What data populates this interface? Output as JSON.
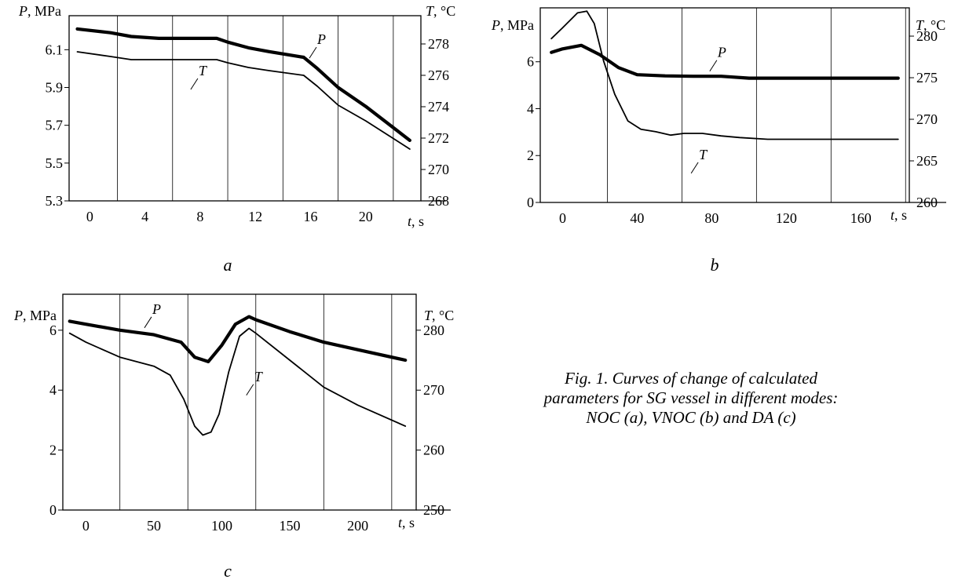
{
  "caption": {
    "line1": "Fig. 1. Curves of change of calculated",
    "line2": "parameters for SG vessel in different modes:",
    "line3": "NOC (a), VNOC (b) and DA (c)"
  },
  "chart_data": [
    {
      "panel": "a",
      "type": "line",
      "xlabel_var": "t",
      "xlabel_unit": ", s",
      "ylabel_left_var": "P",
      "ylabel_left_unit": ", MPa",
      "ylabel_right_var": "T",
      "ylabel_right_unit": ", °C",
      "x_ticks": [
        0,
        4,
        8,
        12,
        16,
        20
      ],
      "xlim": [
        -1.5,
        24
      ],
      "y_left_ticks": [
        5.3,
        5.5,
        5.7,
        5.9,
        6.1
      ],
      "y_left_tick_labels": [
        "5.3",
        "5.5",
        "5.7",
        "5.9",
        "6.1"
      ],
      "ylim_left": [
        5.3,
        6.28
      ],
      "y_right_ticks": [
        268,
        270,
        272,
        274,
        276,
        278
      ],
      "ylim_right": [
        268,
        279.8
      ],
      "vgrid": [
        2,
        6,
        10,
        14,
        18,
        22
      ],
      "series": [
        {
          "name": "P",
          "axis": "left",
          "bold": true,
          "x": [
            -0.9,
            1.5,
            3.0,
            5.0,
            9.2,
            10.0,
            11.5,
            13.0,
            15.5,
            16.5,
            18.0,
            20.0,
            23.2
          ],
          "y": [
            6.21,
            6.19,
            6.17,
            6.16,
            6.16,
            6.14,
            6.11,
            6.09,
            6.06,
            6.0,
            5.9,
            5.8,
            5.62
          ]
        },
        {
          "name": "T",
          "axis": "right",
          "bold": false,
          "x": [
            -0.9,
            1.5,
            3.0,
            5.0,
            9.2,
            10.0,
            11.5,
            13.0,
            15.5,
            16.5,
            18.0,
            20.0,
            23.2
          ],
          "y": [
            277.5,
            277.2,
            277.0,
            277.0,
            277.0,
            276.8,
            276.5,
            276.3,
            276.0,
            275.3,
            274.1,
            273.1,
            271.3
          ]
        }
      ],
      "labels": [
        {
          "text": "P",
          "x": 16.6,
          "y": 6.13,
          "axis": "left"
        },
        {
          "text": "T",
          "x": 8.0,
          "y": 276.0,
          "axis": "right"
        }
      ]
    },
    {
      "panel": "b",
      "type": "line",
      "xlabel_var": "t",
      "xlabel_unit": ", s",
      "ylabel_left_var": "P",
      "ylabel_left_unit": ", MPa",
      "ylabel_right_var": "T",
      "ylabel_right_unit": ", °C",
      "x_ticks": [
        0,
        40,
        80,
        120,
        160
      ],
      "xlim": [
        -12,
        186
      ],
      "y_left_ticks": [
        0,
        2,
        4,
        6
      ],
      "y_left_tick_labels": [
        "0",
        "2",
        "4",
        "6"
      ],
      "ylim_left": [
        0,
        8.3
      ],
      "y_right_ticks": [
        260,
        265,
        270,
        275,
        280
      ],
      "ylim_right": [
        260,
        283.4
      ],
      "vgrid": [
        24,
        64,
        104,
        144,
        184
      ],
      "series": [
        {
          "name": "P",
          "axis": "left",
          "bold": true,
          "x": [
            -6,
            0,
            10,
            20,
            30,
            40,
            55,
            70,
            85,
            100,
            140,
            180
          ],
          "y": [
            6.4,
            6.55,
            6.7,
            6.3,
            5.75,
            5.45,
            5.4,
            5.38,
            5.38,
            5.3,
            5.3,
            5.3
          ]
        },
        {
          "name": "T",
          "axis": "right",
          "bold": false,
          "x": [
            -6,
            0,
            8,
            13,
            17,
            22,
            28,
            35,
            42,
            50,
            58,
            65,
            75,
            85,
            95,
            110,
            140,
            180
          ],
          "y": [
            279.7,
            281.0,
            282.8,
            283.0,
            281.5,
            277.0,
            273.0,
            269.8,
            268.8,
            268.5,
            268.1,
            268.3,
            268.3,
            268.0,
            267.8,
            267.6,
            267.6,
            267.6
          ]
        }
      ],
      "labels": [
        {
          "text": "P",
          "x": 84,
          "y": 6.2,
          "axis": "left"
        },
        {
          "text": "T",
          "x": 74,
          "y": 265.2,
          "axis": "right"
        }
      ]
    },
    {
      "panel": "c",
      "type": "line",
      "xlabel_var": "t",
      "xlabel_unit": ", s",
      "ylabel_left_var": "P",
      "ylabel_left_unit": ", MPa",
      "ylabel_right_var": "T",
      "ylabel_right_unit": ", °C",
      "x_ticks": [
        0,
        50,
        100,
        150,
        200
      ],
      "xlim": [
        -17,
        243
      ],
      "y_left_ticks": [
        0,
        2,
        4,
        6
      ],
      "y_left_tick_labels": [
        "0",
        "2",
        "4",
        "6"
      ],
      "ylim_left": [
        0,
        7.2
      ],
      "y_right_ticks": [
        250,
        260,
        270,
        280
      ],
      "ylim_right": [
        250,
        286
      ],
      "vgrid": [
        25,
        75,
        125,
        175,
        225
      ],
      "series": [
        {
          "name": "P",
          "axis": "left",
          "bold": true,
          "x": [
            -12,
            0,
            25,
            50,
            70,
            80,
            90,
            100,
            110,
            120,
            125,
            150,
            175,
            200,
            235
          ],
          "y": [
            6.3,
            6.2,
            6.0,
            5.85,
            5.6,
            5.1,
            4.95,
            5.5,
            6.2,
            6.45,
            6.35,
            5.95,
            5.6,
            5.35,
            5.0
          ]
        },
        {
          "name": "T",
          "axis": "right",
          "bold": false,
          "x": [
            -12,
            0,
            25,
            50,
            62,
            72,
            80,
            86,
            92,
            98,
            105,
            113,
            120,
            125,
            150,
            175,
            200,
            235
          ],
          "y": [
            279.5,
            278,
            275.5,
            274,
            272.5,
            268.5,
            264,
            262.5,
            263,
            266,
            273,
            279,
            280.3,
            279.5,
            275,
            270.5,
            267.5,
            264
          ]
        }
      ],
      "labels": [
        {
          "text": "P",
          "x": 50,
          "y": 6.55,
          "axis": "left"
        },
        {
          "text": "T",
          "x": 125,
          "y": 271.5,
          "axis": "right"
        }
      ]
    }
  ]
}
